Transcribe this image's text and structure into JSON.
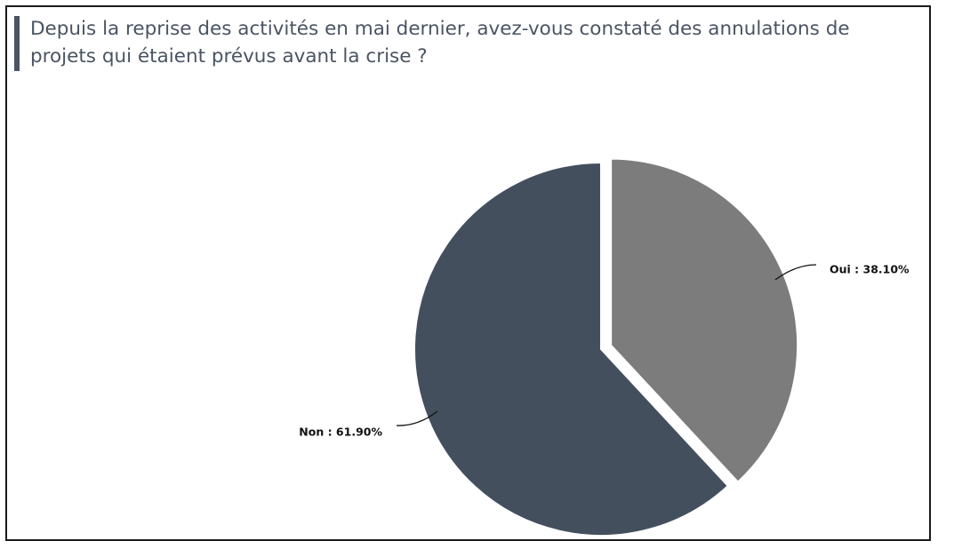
{
  "chart_data": {
    "type": "pie",
    "title": "Depuis la reprise des activités en mai dernier, avez-vous constaté des annulations de projets qui étaient prévus avant la crise ?",
    "slices": [
      {
        "label": "Oui",
        "value": 38.1,
        "display": "Oui  : 38.10%",
        "color": "#7c7c7c"
      },
      {
        "label": "Non",
        "value": 61.9,
        "display": "Non : 61.90%",
        "color": "#444f5e"
      }
    ],
    "legend": "none",
    "start_angle_deg": 0,
    "direction": "clockwise",
    "exploded_slice": "Oui"
  }
}
